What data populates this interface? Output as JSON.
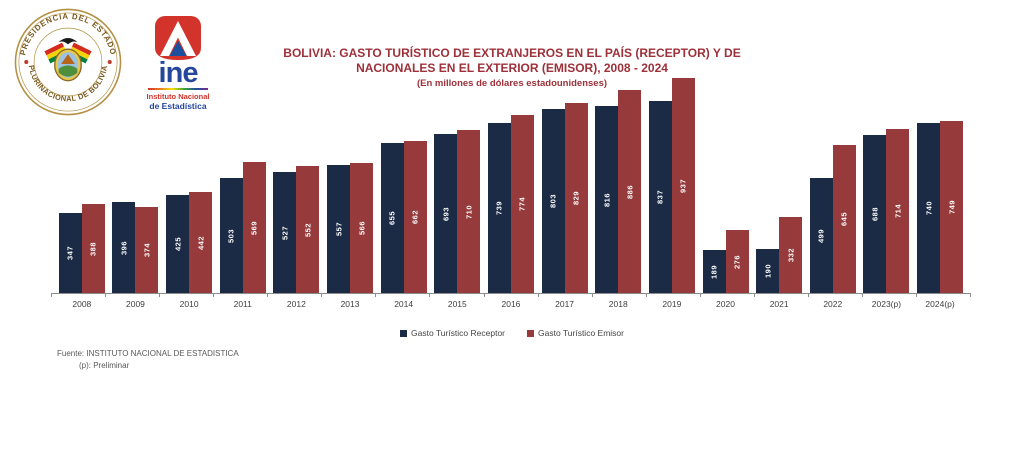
{
  "header": {
    "seal": {
      "top_text": "PRESIDENCIA DEL ESTADO",
      "bottom_text": "PLURINACIONAL DE BOLIVIA"
    },
    "ine_logo": {
      "word": "ine",
      "line1": "Instituto Nacional",
      "line2": "de Estadística"
    }
  },
  "title": {
    "line1": "BOLIVIA: GASTO TURÍSTICO DE EXTRANJEROS EN EL PAÍS (RECEPTOR) Y DE",
    "line2": "NACIONALES EN EL EXTERIOR (EMISOR), 2008 - 2024",
    "subtitle": "(En millones de dólares estadounidenses)"
  },
  "chart_data": {
    "type": "bar",
    "categories": [
      "2008",
      "2009",
      "2010",
      "2011",
      "2012",
      "2013",
      "2014",
      "2015",
      "2016",
      "2017",
      "2018",
      "2019",
      "2020",
      "2021",
      "2022",
      "2023(p)",
      "2024(p)"
    ],
    "series": [
      {
        "name": "Gasto Turístico Receptor",
        "color": "#1b2a45",
        "values": [
          347,
          396,
          425,
          503,
          527,
          557,
          655,
          693,
          739,
          803,
          816,
          837,
          189,
          190,
          499,
          688,
          740
        ]
      },
      {
        "name": "Gasto Turístico Emisor",
        "color": "#963a3c",
        "values": [
          388,
          374,
          442,
          569,
          552,
          566,
          662,
          710,
          774,
          829,
          886,
          937,
          276,
          332,
          645,
          714,
          749
        ]
      }
    ],
    "title": "BOLIVIA: GASTO TURÍSTICO DE EXTRANJEROS EN EL PAÍS (RECEPTOR) Y DE NACIONALES EN EL EXTERIOR (EMISOR), 2008 - 2024",
    "subtitle": "(En millones de dólares estadounidenses)",
    "xlabel": "",
    "ylabel": "",
    "ylim": [
      0,
      950
    ],
    "grid": false,
    "legend_position": "bottom",
    "value_labels": "inside-center-vertical-white"
  },
  "footer": {
    "source": "Fuente: INSTITUTO NACIONAL DE ESTADISTICA",
    "note": "(p): Preliminar"
  }
}
